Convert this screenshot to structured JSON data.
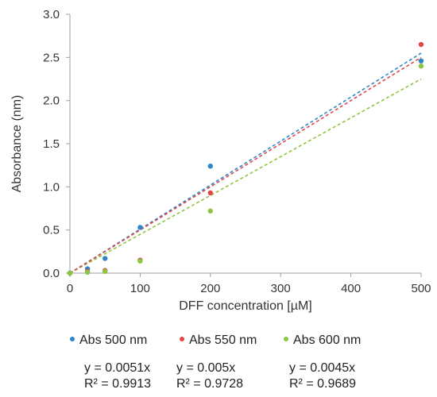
{
  "chart_data": {
    "type": "scatter",
    "xlabel": "DFF concentration [µM]",
    "ylabel": "Absorbance (nm)",
    "xlim": [
      0,
      500
    ],
    "ylim": [
      0,
      3.0
    ],
    "xticks": [
      "0",
      "100",
      "200",
      "300",
      "400",
      "500"
    ],
    "yticks": [
      "0.0",
      "0.5",
      "1.0",
      "1.5",
      "2.0",
      "2.5",
      "3.0"
    ],
    "grid": false,
    "legend_position": "bottom",
    "series": [
      {
        "name": "Abs 500 nm",
        "color": "#2e86c8",
        "x": [
          0,
          25,
          50,
          100,
          200,
          500
        ],
        "y": [
          0.0,
          0.05,
          0.17,
          0.53,
          1.24,
          2.46
        ],
        "trendline_slope": 0.0051,
        "equation": "y = 0.0051x",
        "r2": "R² = 0.9913"
      },
      {
        "name": "Abs 550 nm",
        "color": "#e04848",
        "x": [
          0,
          25,
          50,
          100,
          200,
          500
        ],
        "y": [
          0.0,
          0.02,
          0.03,
          0.15,
          0.93,
          2.65
        ],
        "trendline_slope": 0.005,
        "equation": "y = 0.005x",
        "r2": "R² = 0.9728"
      },
      {
        "name": "Abs 600 nm",
        "color": "#8cc63f",
        "x": [
          0,
          25,
          50,
          100,
          200,
          500
        ],
        "y": [
          0.0,
          0.01,
          0.02,
          0.14,
          0.72,
          2.4
        ],
        "trendline_slope": 0.0045,
        "equation": "y = 0.0045x",
        "r2": "R² = 0.9689"
      }
    ]
  }
}
